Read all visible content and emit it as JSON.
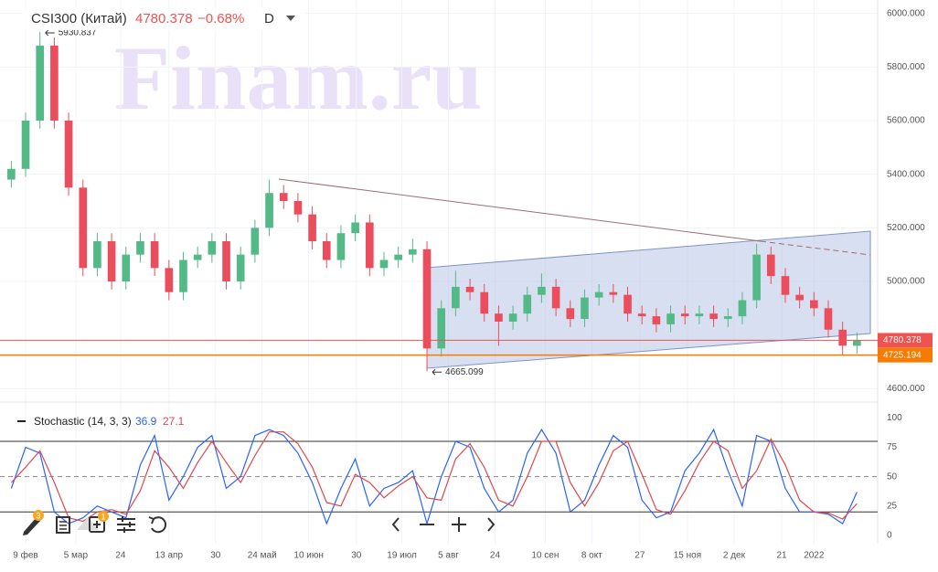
{
  "watermark": "Finam.ru",
  "toolbar": {
    "badges": [
      "3",
      "1"
    ]
  },
  "chart_data": [
    {
      "type": "candlestick",
      "title": "CSI300 (Китай)",
      "header_change": "−0.68%",
      "interval": "D",
      "up_color": "#53b987",
      "down_color": "#eb4d5c",
      "grid": true,
      "x": [
        -4,
        0,
        4,
        8,
        12,
        16,
        20,
        24,
        28,
        32,
        36,
        40,
        44,
        48,
        52,
        56,
        60,
        64,
        68,
        72,
        76,
        80,
        84,
        88,
        92,
        96,
        100,
        104,
        108,
        112,
        116,
        120,
        124,
        128,
        132,
        136,
        140,
        144,
        148,
        152,
        156,
        160,
        164,
        168,
        172,
        176,
        180,
        184,
        188,
        192,
        196,
        200,
        204,
        208,
        212,
        216,
        220,
        224,
        228,
        232
      ],
      "open": [
        5380,
        5420,
        5600,
        5880,
        5600,
        5350,
        5050,
        5150,
        5000,
        5100,
        5150,
        5050,
        4960,
        5080,
        5100,
        5150,
        5000,
        5100,
        5200,
        5330,
        5300,
        5250,
        5150,
        5080,
        5180,
        5220,
        5050,
        5080,
        5100,
        5120,
        4750,
        4900,
        4980,
        4960,
        4880,
        4850,
        4880,
        4950,
        4980,
        4900,
        4860,
        4940,
        4960,
        4950,
        4880,
        4870,
        4840,
        4880,
        4870,
        4880,
        4860,
        4870,
        4930,
        5100,
        5020,
        4950,
        4930,
        4900,
        4820,
        4760
      ],
      "high": [
        5450,
        5630,
        5930.837,
        5910,
        5630,
        5380,
        5180,
        5180,
        5130,
        5180,
        5180,
        5080,
        5110,
        5130,
        5180,
        5180,
        5130,
        5230,
        5380,
        5360,
        5330,
        5280,
        5180,
        5210,
        5250,
        5250,
        5110,
        5130,
        5160,
        5150,
        4930,
        5040,
        5010,
        4990,
        4910,
        4910,
        4980,
        5030,
        5010,
        4930,
        4970,
        4990,
        4990,
        4980,
        4910,
        4900,
        4910,
        4910,
        4910,
        4910,
        4900,
        4960,
        5140,
        5130,
        5050,
        4980,
        4960,
        4930,
        4850,
        4810
      ],
      "low": [
        5350,
        5390,
        5570,
        5570,
        5320,
        5020,
        5020,
        4970,
        4970,
        5070,
        5020,
        4930,
        4930,
        5050,
        5070,
        4970,
        4970,
        5070,
        5170,
        5270,
        5220,
        5120,
        5050,
        5050,
        5150,
        5020,
        5020,
        5050,
        5070,
        4665.099,
        4720,
        4870,
        4930,
        4850,
        4760,
        4820,
        4850,
        4920,
        4870,
        4830,
        4830,
        4910,
        4920,
        4850,
        4840,
        4810,
        4810,
        4840,
        4840,
        4830,
        4830,
        4840,
        4900,
        4990,
        4920,
        4900,
        4870,
        4790,
        4725,
        4730
      ],
      "close": [
        5420,
        5600,
        5880,
        5600,
        5350,
        5050,
        5150,
        5000,
        5100,
        5150,
        5050,
        4960,
        5080,
        5100,
        5150,
        5000,
        5100,
        5200,
        5330,
        5300,
        5250,
        5150,
        5080,
        5180,
        5220,
        5050,
        5080,
        5100,
        5120,
        4750,
        4900,
        4980,
        4960,
        4880,
        4850,
        4880,
        4950,
        4980,
        4900,
        4860,
        4940,
        4960,
        4950,
        4880,
        4870,
        4840,
        4880,
        4870,
        4880,
        4860,
        4870,
        4930,
        5100,
        5020,
        4950,
        4930,
        4900,
        4820,
        4760,
        4780.378
      ],
      "last_color": "#ef5350",
      "annotations": [
        {
          "x": 4,
          "value": 5930.837
        },
        {
          "x": 112,
          "value": 4665.099
        }
      ],
      "levels": [
        {
          "value": 4725.194,
          "color": "#f57c00"
        }
      ],
      "xlim": [
        -4.6,
        236.5
      ],
      "ylim": [
        4550,
        6050
      ],
      "yticks": [
        {
          "value": 4600,
          "label": "4600.000"
        },
        {
          "value": 5000,
          "label": "5000.000"
        },
        {
          "value": 5200,
          "label": "5200.000"
        },
        {
          "value": 5400,
          "label": "5400.000"
        },
        {
          "value": 5600,
          "label": "5600.000"
        },
        {
          "value": 5800,
          "label": "5800.000"
        },
        {
          "value": 6000,
          "label": "6000.000"
        }
      ],
      "xticks": [
        {
          "value": 0,
          "label": "9 фев"
        },
        {
          "value": 14,
          "label": "5 мар"
        },
        {
          "value": 26.5,
          "label": "24"
        },
        {
          "value": 40,
          "label": "13 апр"
        },
        {
          "value": 53,
          "label": "30"
        },
        {
          "value": 66,
          "label": "24 май"
        },
        {
          "value": 79,
          "label": "10 июн"
        },
        {
          "value": 92.3,
          "label": "30"
        },
        {
          "value": 105,
          "label": "19 июл"
        },
        {
          "value": 118,
          "label": "5 авг"
        },
        {
          "value": 131,
          "label": "24"
        },
        {
          "value": 145,
          "label": "10 сен"
        },
        {
          "value": 158,
          "label": "8 окт"
        },
        {
          "value": 171.4,
          "label": "27"
        },
        {
          "value": 184.7,
          "label": "15 ноя"
        },
        {
          "value": 197.7,
          "label": "2 дек"
        },
        {
          "value": 211,
          "label": "21"
        },
        {
          "value": 220,
          "label": "2022"
        }
      ]
    },
    {
      "type": "line",
      "title": "Stochastic (14, 3, 3)",
      "x": [
        -4,
        0,
        4,
        8,
        12,
        16,
        20,
        24,
        28,
        32,
        36,
        40,
        44,
        48,
        52,
        56,
        60,
        64,
        68,
        72,
        76,
        80,
        84,
        88,
        92,
        96,
        100,
        104,
        108,
        112,
        116,
        120,
        124,
        128,
        132,
        136,
        140,
        144,
        148,
        152,
        156,
        160,
        164,
        168,
        172,
        176,
        180,
        184,
        188,
        192,
        196,
        200,
        204,
        208,
        212,
        216,
        220,
        224,
        228,
        232
      ],
      "series": [
        {
          "color": "#2962ff",
          "values": [
            40,
            75,
            70,
            20,
            10,
            15,
            25,
            20,
            15,
            60,
            85,
            30,
            50,
            75,
            85,
            40,
            50,
            85,
            90,
            85,
            70,
            45,
            10,
            40,
            65,
            25,
            40,
            45,
            55,
            10,
            50,
            80,
            75,
            40,
            20,
            30,
            70,
            90,
            70,
            20,
            30,
            60,
            85,
            75,
            30,
            15,
            20,
            55,
            70,
            90,
            55,
            25,
            85,
            80,
            40,
            20,
            20,
            18,
            10,
            36.9
          ]
        },
        {
          "color": "#e0474c",
          "values": [
            45,
            58,
            72,
            45,
            15,
            12,
            20,
            22,
            18,
            38,
            72,
            58,
            40,
            62,
            80,
            62,
            45,
            68,
            88,
            88,
            78,
            58,
            28,
            25,
            52,
            45,
            32,
            42,
            50,
            32,
            30,
            65,
            78,
            58,
            30,
            25,
            50,
            80,
            80,
            45,
            25,
            45,
            72,
            80,
            52,
            22,
            18,
            38,
            62,
            80,
            72,
            40,
            55,
            82,
            60,
            30,
            20,
            19,
            14,
            27.1
          ]
        }
      ],
      "levels": [
        {
          "value": 80
        },
        {
          "value": 50,
          "dashed": true
        },
        {
          "value": 20
        }
      ],
      "xlim": [
        -4.6,
        236.5
      ],
      "ylim": [
        -7,
        108
      ],
      "yticks": [
        0,
        25,
        50,
        75,
        100
      ]
    }
  ]
}
